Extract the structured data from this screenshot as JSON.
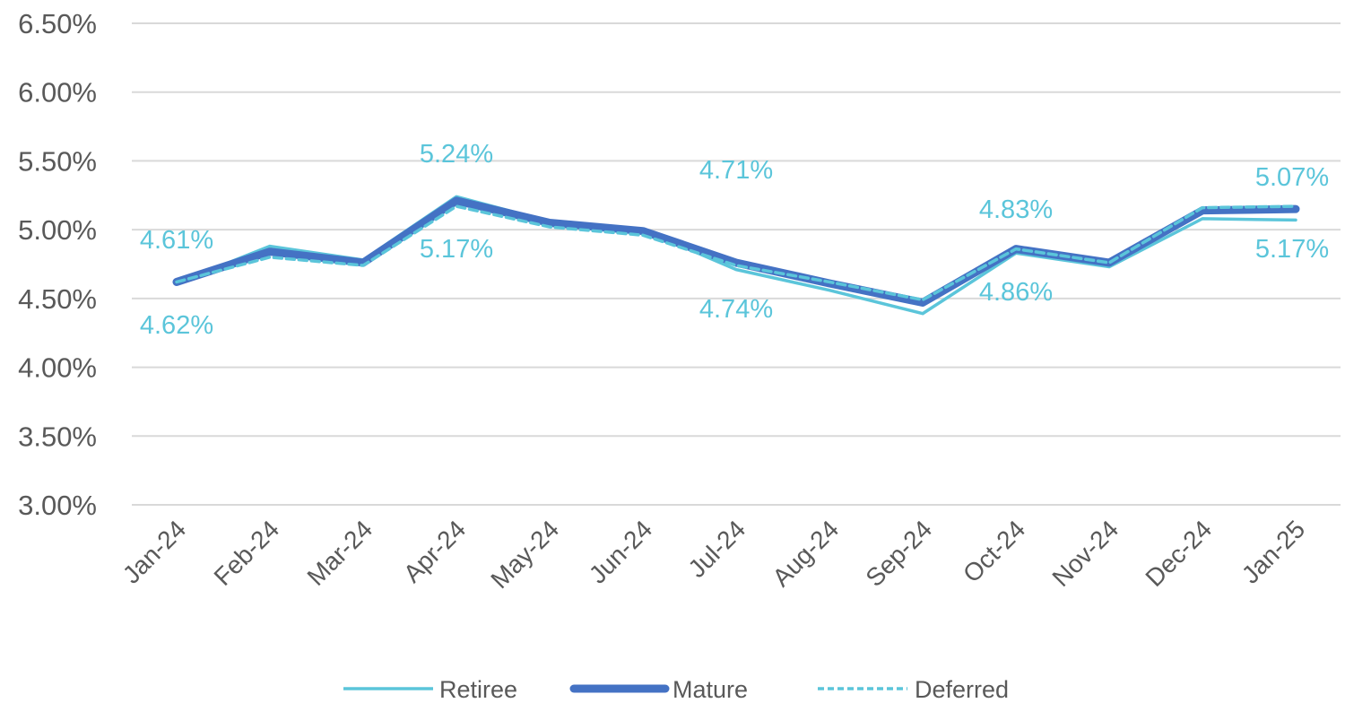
{
  "chart_data": {
    "type": "line",
    "title": "",
    "xlabel": "",
    "ylabel": "",
    "ylim": [
      3.0,
      6.5
    ],
    "y_ticks": [
      "3.00%",
      "3.50%",
      "4.00%",
      "4.50%",
      "5.00%",
      "5.50%",
      "6.00%",
      "6.50%"
    ],
    "y_tick_values": [
      3.0,
      3.5,
      4.0,
      4.5,
      5.0,
      5.5,
      6.0,
      6.5
    ],
    "grid": "horizontal",
    "legend_position": "bottom",
    "categories": [
      "Jan-24",
      "Feb-24",
      "Mar-24",
      "Apr-24",
      "May-24",
      "Jun-24",
      "Jul-24",
      "Aug-24",
      "Sep-24",
      "Oct-24",
      "Nov-24",
      "Dec-24",
      "Jan-25"
    ],
    "series": [
      {
        "name": "Retiree",
        "color": "#5BC5DA",
        "style": "solid-thin",
        "values": [
          4.61,
          4.88,
          4.78,
          5.24,
          5.06,
          5.0,
          4.71,
          4.56,
          4.39,
          4.83,
          4.73,
          5.08,
          5.07
        ]
      },
      {
        "name": "Mature",
        "color": "#4472C4",
        "style": "solid-thick",
        "values": [
          4.62,
          4.84,
          4.76,
          5.21,
          5.05,
          4.99,
          4.76,
          4.61,
          4.47,
          4.86,
          4.76,
          5.14,
          5.15
        ]
      },
      {
        "name": "Deferred",
        "color": "#5BC5DA",
        "style": "dashed",
        "values": [
          4.62,
          4.8,
          4.74,
          5.17,
          5.02,
          4.96,
          4.74,
          4.62,
          4.49,
          4.86,
          4.76,
          5.16,
          5.17
        ]
      }
    ],
    "data_labels": [
      {
        "category": "Jan-24",
        "above": "4.61%",
        "below": "4.62%"
      },
      {
        "category": "Apr-24",
        "above": "5.24%",
        "below": "5.17%"
      },
      {
        "category": "Jul-24",
        "above": "4.71%",
        "below": "4.74%"
      },
      {
        "category": "Oct-24",
        "above": "4.83%",
        "below": "4.86%"
      },
      {
        "category": "Jan-25",
        "above": "5.07%",
        "below": "5.17%"
      }
    ],
    "label_color": "#5BC5DA"
  }
}
